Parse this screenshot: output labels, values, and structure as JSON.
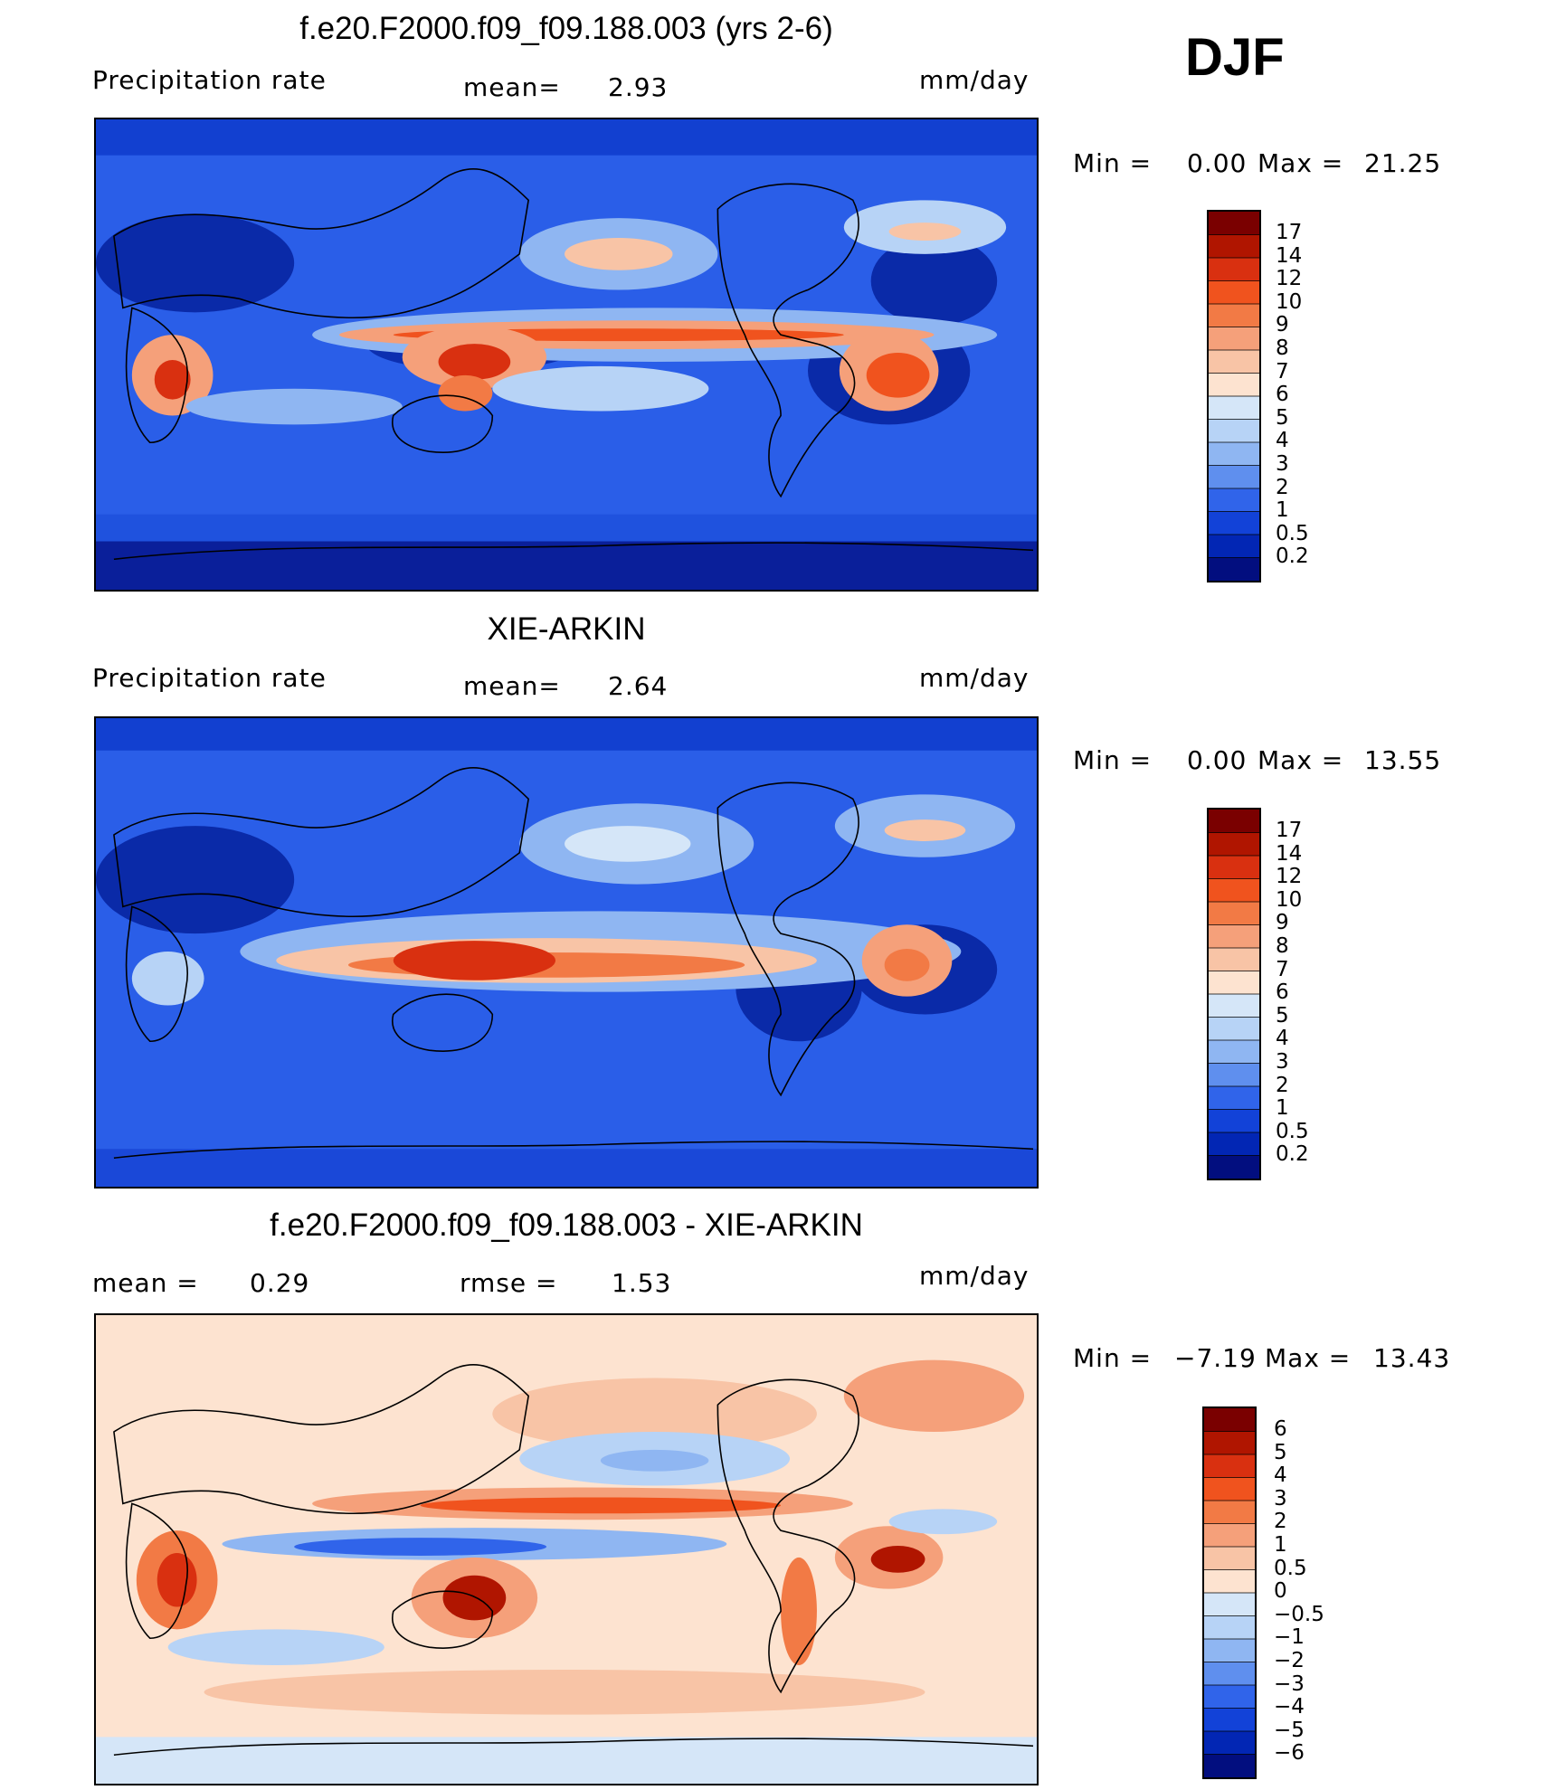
{
  "header": {
    "season": "DJF"
  },
  "chart_data": [
    {
      "type": "heatmap",
      "title": "f.e20.F2000.f09_f09.188.003 (yrs 2-6)",
      "field": "Precipitation rate",
      "stat_label": "mean=",
      "stat_value": "2.93",
      "units": "mm/day",
      "range_text": {
        "min_label": "Min =",
        "min": "0.00",
        "max_label": "Max =",
        "max": "21.25"
      },
      "colorbar": {
        "levels": [
          "17",
          "14",
          "12",
          "10",
          "9",
          "8",
          "7",
          "6",
          "5",
          "4",
          "3",
          "2",
          "1",
          "0.5",
          "0.2"
        ],
        "colors": [
          "#7a0000",
          "#b01500",
          "#d93010",
          "#f0531e",
          "#f27a45",
          "#f5a07a",
          "#f8c4a6",
          "#fde3d0",
          "#d5e6f8",
          "#b7d3f6",
          "#8fb6f2",
          "#5f8fee",
          "#3064ea",
          "#1242d8",
          "#0226b4",
          "#020e7f"
        ]
      }
    },
    {
      "type": "heatmap",
      "title": "XIE-ARKIN",
      "field": "Precipitation rate",
      "stat_label": "mean=",
      "stat_value": "2.64",
      "units": "mm/day",
      "range_text": {
        "min_label": "Min =",
        "min": "0.00",
        "max_label": "Max =",
        "max": "13.55"
      },
      "colorbar": {
        "levels": [
          "17",
          "14",
          "12",
          "10",
          "9",
          "8",
          "7",
          "6",
          "5",
          "4",
          "3",
          "2",
          "1",
          "0.5",
          "0.2"
        ],
        "colors": [
          "#7a0000",
          "#b01500",
          "#d93010",
          "#f0531e",
          "#f27a45",
          "#f5a07a",
          "#f8c4a6",
          "#fde3d0",
          "#d5e6f8",
          "#b7d3f6",
          "#8fb6f2",
          "#5f8fee",
          "#3064ea",
          "#1242d8",
          "#0226b4",
          "#020e7f"
        ]
      }
    },
    {
      "type": "heatmap",
      "title": "f.e20.F2000.f09_f09.188.003 - XIE-ARKIN",
      "stat_label": "mean =",
      "stat_value": "0.29",
      "stat2_label": "rmse =",
      "stat2_value": "1.53",
      "units": "mm/day",
      "range_text": {
        "min_label": "Min =",
        "min": "−7.19",
        "max_label": "Max =",
        "max": "13.43"
      },
      "colorbar": {
        "levels": [
          "6",
          "5",
          "4",
          "3",
          "2",
          "1",
          "0.5",
          "0",
          "−0.5",
          "−1",
          "−2",
          "−3",
          "−4",
          "−5",
          "−6"
        ],
        "colors": [
          "#7a0000",
          "#b01500",
          "#d93010",
          "#f0531e",
          "#f27a45",
          "#f5a07a",
          "#f8c4a6",
          "#fde3d0",
          "#d5e6f8",
          "#b7d3f6",
          "#8fb6f2",
          "#5f8fee",
          "#3064ea",
          "#1242d8",
          "#0226b4",
          "#020e7f"
        ]
      }
    }
  ]
}
